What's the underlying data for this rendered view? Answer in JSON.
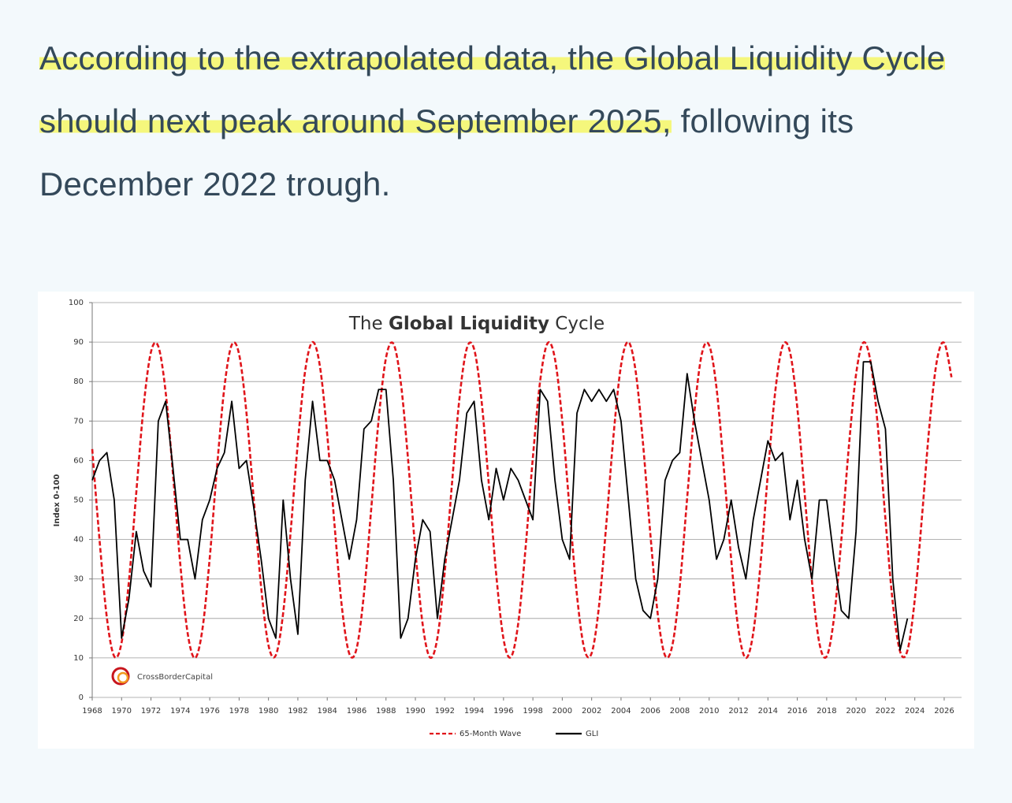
{
  "post": {
    "highlight": "According to the extrapolated data, the Global Liquidity Cycle should next peak around September 2025,",
    "text": "following its December 2022 trough."
  },
  "chart_data": {
    "type": "line",
    "title": [
      "The",
      "Global Liquidity",
      "Cycle"
    ],
    "ylabel": "Index 0-100",
    "logo": "CrossBorderCapital",
    "xlim": [
      1968,
      2027
    ],
    "ylim": [
      0,
      100
    ],
    "xticks": [
      1968,
      1970,
      1972,
      1974,
      1976,
      1978,
      1980,
      1982,
      1984,
      1986,
      1988,
      1990,
      1992,
      1994,
      1996,
      1998,
      2000,
      2002,
      2004,
      2006,
      2008,
      2010,
      2012,
      2014,
      2016,
      2018,
      2020,
      2022,
      2024,
      2026
    ],
    "yticks": [
      0,
      10,
      20,
      30,
      40,
      50,
      60,
      70,
      80,
      90,
      100
    ],
    "grid": true,
    "x": [
      1968,
      1968.5,
      1969,
      1969.5,
      1970,
      1970.5,
      1971,
      1971.5,
      1972,
      1972.5,
      1973,
      1973.5,
      1974,
      1974.5,
      1975,
      1975.5,
      1976,
      1976.5,
      1977,
      1977.5,
      1978,
      1978.5,
      1979,
      1979.5,
      1980,
      1980.5,
      1981,
      1981.5,
      1982,
      1982.5,
      1983,
      1983.5,
      1984,
      1984.5,
      1985,
      1985.5,
      1986,
      1986.5,
      1987,
      1987.5,
      1988,
      1988.5,
      1989,
      1989.5,
      1990,
      1990.5,
      1991,
      1991.5,
      1992,
      1992.5,
      1993,
      1993.5,
      1994,
      1994.5,
      1995,
      1995.5,
      1996,
      1996.5,
      1997,
      1997.5,
      1998,
      1998.5,
      1999,
      1999.5,
      2000,
      2000.5,
      2001,
      2001.5,
      2002,
      2002.5,
      2003,
      2003.5,
      2004,
      2004.5,
      2005,
      2005.5,
      2006,
      2006.5,
      2007,
      2007.5,
      2008,
      2008.5,
      2009,
      2009.5,
      2010,
      2010.5,
      2011,
      2011.5,
      2012,
      2012.5,
      2013,
      2013.5,
      2014,
      2014.5,
      2015,
      2015.5,
      2016,
      2016.5,
      2017,
      2017.5,
      2018,
      2018.5,
      2019,
      2019.5,
      2020,
      2020.5,
      2021,
      2021.5,
      2022,
      2022.5,
      2023,
      2023.5,
      2024,
      2024.5,
      2025,
      2025.5,
      2026,
      2026.5
    ],
    "series": [
      {
        "name": "65-Month Wave",
        "color": "#e0151b",
        "dash": true,
        "values": [
          62.9,
          39.8,
          20.1,
          10.4,
          13.9,
          29.5,
          51.9,
          73.7,
          87.5,
          88.9,
          77.3,
          56.5,
          33.6,
          16.2,
          10.0,
          17.2,
          35.3,
          58.4,
          78.6,
          89.3,
          86.9,
          72.1,
          50.0,
          27.9,
          13.2,
          10.7,
          21.4,
          41.6,
          64.6,
          82.8,
          90.0,
          83.9,
          66.5,
          43.5,
          22.8,
          11.1,
          12.4,
          26.3,
          48.0,
          70.4,
          86.0,
          89.6,
          80.0,
          60.4,
          37.2,
          18.4,
          10.1,
          15.1,
          31.8,
          54.5,
          75.7,
          88.4,
          88.2,
          75.3,
          54.0,
          31.3,
          14.8,
          10.2,
          18.7,
          37.8,
          60.8,
          80.3,
          89.7,
          85.8,
          70.0,
          47.6,
          25.9,
          12.3,
          11.2,
          23.1,
          44.0,
          66.8,
          84.1,
          90.0,
          82.5,
          64.2,
          41.2,
          21.1,
          10.6,
          13.3,
          28.2,
          50.4,
          72.4,
          87.0,
          89.2,
          78.4,
          58.0,
          35.0,
          17.0,
          10.0,
          16.3,
          33.9,
          56.8,
          77.5,
          89.0,
          87.5,
          73.4,
          51.6,
          29.3,
          13.8,
          10.4,
          20.2,
          40.0,
          63.1,
          81.8,
          89.9,
          84.7,
          68.0,
          45.2,
          24.0,
          11.6,
          11.9,
          24.9,
          46.3,
          69.0,
          85.2,
          89.8,
          81.1
        ]
      },
      {
        "name": "GLI",
        "color": "#000000",
        "dash": false,
        "values": [
          55,
          60,
          62,
          50,
          15,
          25,
          42,
          32,
          28,
          70,
          75,
          58,
          40,
          40,
          30,
          45,
          50,
          58,
          62,
          75,
          58,
          60,
          48,
          35,
          20,
          15,
          50,
          30,
          16,
          55,
          75,
          60,
          60,
          55,
          45,
          35,
          45,
          68,
          70,
          78,
          78,
          55,
          15,
          20,
          35,
          45,
          42,
          20,
          35,
          45,
          55,
          72,
          75,
          55,
          45,
          58,
          50,
          58,
          55,
          50,
          45,
          78,
          75,
          55,
          40,
          35,
          72,
          78,
          75,
          78,
          75,
          78,
          70,
          50,
          30,
          22,
          20,
          30,
          55,
          60,
          62,
          82,
          70,
          60,
          50,
          35,
          40,
          50,
          38,
          30,
          45,
          55,
          65,
          60,
          62,
          45,
          55,
          40,
          30,
          50,
          50,
          35,
          22,
          20,
          42,
          85,
          85,
          75,
          68,
          30,
          12,
          20,
          null,
          null,
          null,
          null,
          null,
          null
        ]
      }
    ]
  }
}
